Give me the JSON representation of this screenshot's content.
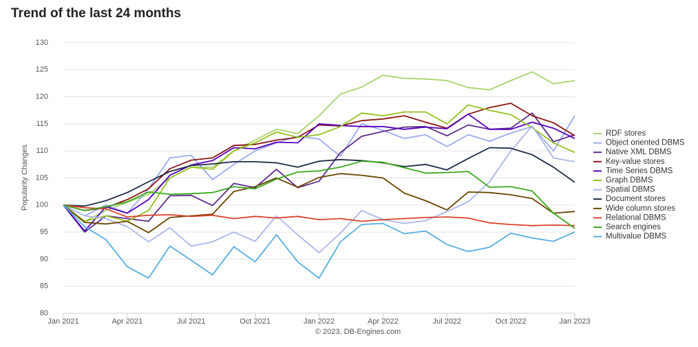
{
  "chart_data": {
    "type": "line",
    "title": "Trend of the last 24 months",
    "ylabel": "Popularity Changes",
    "credit": "© 2023, DB-Engines.com",
    "categories": [
      "Jan 2021",
      null,
      null,
      "Apr 2021",
      null,
      null,
      "Jul 2021",
      null,
      null,
      "Oct 2021",
      null,
      null,
      "Jan 2022",
      null,
      null,
      "Apr 2022",
      null,
      null,
      "Jul 2022",
      null,
      null,
      "Oct 2022",
      null,
      null,
      "Jan 2023"
    ],
    "ylim": [
      80,
      130
    ],
    "yticks": [
      80,
      85,
      90,
      95,
      100,
      105,
      110,
      115,
      120,
      125,
      130
    ],
    "grid": true,
    "legend": "right",
    "series": [
      {
        "name": "RDF stores",
        "color": "#a6d36b",
        "values": [
          100,
          97,
          99,
          100.5,
          102,
          105,
          107,
          107,
          110,
          112,
          114,
          113.2,
          116.5,
          120.5,
          121.8,
          124,
          123.4,
          123.3,
          123,
          121.7,
          121.3,
          123,
          124.6,
          122.4,
          123
        ]
      },
      {
        "name": "Object oriented DBMS",
        "color": "#9aaaf0",
        "values": [
          100,
          98,
          100,
          98.5,
          103,
          108.7,
          109.2,
          104.7,
          107.5,
          110,
          111.5,
          112.7,
          112.2,
          109,
          115,
          113.8,
          112.3,
          113,
          110.8,
          113,
          111.8,
          113.3,
          114.5,
          110,
          116.5
        ]
      },
      {
        "name": "Native XML DBMS",
        "color": "#5c2a8c",
        "values": [
          100,
          95,
          98,
          97.5,
          97,
          101.7,
          101.8,
          99.9,
          104,
          103.2,
          106.6,
          103.2,
          104.4,
          109.7,
          112.7,
          113.6,
          114.4,
          114.5,
          112.8,
          114.8,
          114,
          114.2,
          117,
          111.7,
          113
        ]
      },
      {
        "name": "Key-value stores",
        "color": "#8b1515",
        "values": [
          100,
          99,
          99.5,
          101,
          103,
          106.7,
          108.3,
          108.7,
          111,
          111.2,
          112,
          112.5,
          114.8,
          114.6,
          115.6,
          115.9,
          116.5,
          115.3,
          114.2,
          116.8,
          118,
          118.8,
          116.5,
          115.2,
          112.8
        ]
      },
      {
        "name": "Time Series DBMS",
        "color": "#5500bb",
        "values": [
          100,
          95.2,
          99.7,
          98.5,
          101,
          105.5,
          107.4,
          108.2,
          110.6,
          110.4,
          111.6,
          111.5,
          115,
          114.7,
          114.5,
          114.5,
          114,
          114.4,
          114.1,
          116.8,
          114,
          114,
          115.3,
          114.2,
          112.3
        ]
      },
      {
        "name": "Graph DBMS",
        "color": "#95c11f",
        "values": [
          100,
          97,
          98,
          97,
          99,
          105,
          107,
          106.6,
          110,
          111.5,
          113.5,
          112.5,
          113,
          114.5,
          117,
          116.5,
          117.2,
          117.2,
          115,
          118.5,
          117.5,
          116.7,
          114.3,
          111.5,
          109.7
        ]
      },
      {
        "name": "Spatial DBMS",
        "color": "#aab6ea",
        "values": [
          100,
          98,
          97.5,
          96,
          93.2,
          95.8,
          92.4,
          93.2,
          95,
          93.3,
          98,
          94.5,
          91.2,
          94.8,
          99,
          97.3,
          96.6,
          97.1,
          98.8,
          100.6,
          104.3,
          110,
          114.6,
          108.7,
          108
        ]
      },
      {
        "name": "Document stores",
        "color": "#1c2a44",
        "values": [
          100,
          99.8,
          100.8,
          102.3,
          104.3,
          106.2,
          107.3,
          107.6,
          108,
          108,
          107.8,
          107,
          108.1,
          108.4,
          108.2,
          107.8,
          107.1,
          107.5,
          106.5,
          108.6,
          110.6,
          110.5,
          109.3,
          107,
          104.2
        ]
      },
      {
        "name": "Wide column stores",
        "color": "#6b4400",
        "values": [
          100,
          96.8,
          96.5,
          97,
          94.9,
          97.7,
          98,
          98.3,
          102.5,
          103.4,
          105,
          103.3,
          105.1,
          105.8,
          105.5,
          105,
          102.2,
          100.8,
          99.1,
          102.4,
          102.3,
          101.9,
          101.2,
          98.5,
          98.8
        ]
      },
      {
        "name": "Relational DBMS",
        "color": "#d9432f",
        "values": [
          100,
          99.5,
          99.3,
          97.8,
          98.1,
          98.2,
          97.9,
          98.1,
          97.5,
          97.9,
          97.6,
          97.9,
          97.3,
          97.5,
          97,
          97.3,
          97.5,
          97.7,
          97.8,
          97.6,
          96.7,
          96.4,
          96.2,
          96.3,
          96.2
        ]
      },
      {
        "name": "Search engines",
        "color": "#3aaa1c",
        "values": [
          100,
          99,
          99.7,
          100.6,
          102.4,
          102,
          102.1,
          102.3,
          103.4,
          103,
          104.8,
          106.1,
          106.3,
          107,
          108.1,
          107.9,
          106.9,
          105.9,
          106,
          106.2,
          103.3,
          103.4,
          102.6,
          98.5,
          95.7
        ]
      },
      {
        "name": "Multivalue DBMS",
        "color": "#55aee0",
        "values": [
          100,
          96,
          93.6,
          88.6,
          86.5,
          92.4,
          89.8,
          87.1,
          92.3,
          89.5,
          94.5,
          89.5,
          86.5,
          93.2,
          96.4,
          96.6,
          94.7,
          95.2,
          92.7,
          91.4,
          92.2,
          94.8,
          93.9,
          93.3,
          95
        ]
      }
    ]
  }
}
